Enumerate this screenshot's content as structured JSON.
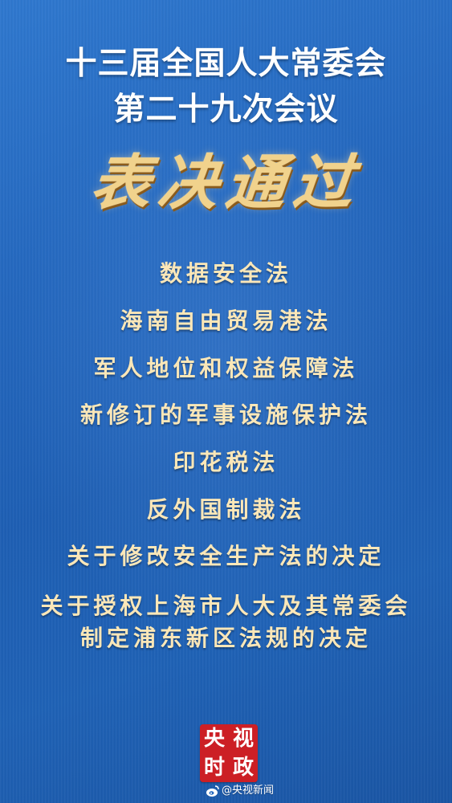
{
  "title_line1": "十三届全国人大常委会",
  "title_line2": "第二十九次会议",
  "stamp": "表决通过",
  "items": [
    "数据安全法",
    "海南自由贸易港法",
    "军人地位和权益保障法",
    "新修订的军事设施保护法",
    "印花税法",
    "反外国制裁法",
    "关于修改安全生产法的决定",
    "关于授权上海市人大及其常委会",
    "制定浦东新区法规的决定"
  ],
  "logo": {
    "c1": "央",
    "c2": "视",
    "c3": "时",
    "c4": "政"
  },
  "credit": "@央视新闻",
  "colors": {
    "background": "#2468bf",
    "item_text": "#fbe7b8",
    "stamp": "#f1d28c",
    "logo_red": "#cc1f25"
  },
  "icons": {
    "credit_icon": "weibo-icon"
  }
}
